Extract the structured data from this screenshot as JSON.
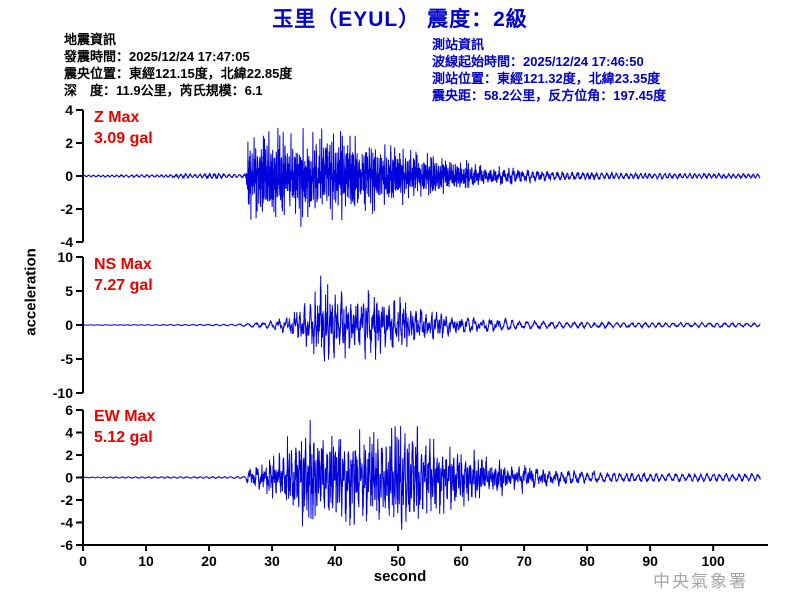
{
  "title": "玉里（EYUL） 震度：2級",
  "quake_info": {
    "heading": "地震資訊",
    "origin_time": "發震時間：2025/12/24 17:47:05",
    "epicenter": "震央位置：東經121.15度，北緯22.85度",
    "depth_mag": "深　度：11.9公里，芮氏規模：6.1"
  },
  "station_info": {
    "heading": "測站資訊",
    "wave_start": "波線起始時間：2025/12/24 17:46:50",
    "location": "測站位置：東經121.32度，北緯23.35度",
    "distance": "震央距：58.2公里，反方位角：197.45度"
  },
  "watermark": "中央氣象署",
  "colors": {
    "title": "#0000cc",
    "station_info": "#0000cc",
    "trace": "#0000dd",
    "trace_label": "#ee0000",
    "axis": "#000000",
    "watermark": "#a6a6a6"
  },
  "chart_data": {
    "type": "line",
    "title": "玉里（EYUL） 震度：2級",
    "xlabel": "second",
    "ylabel": "acceleration",
    "y_unit": "gal",
    "x_range": [
      0,
      108.7
    ],
    "trace_end_s": 107.5,
    "x_ticks": [
      0,
      10,
      20,
      30,
      40,
      50,
      60,
      70,
      80,
      90,
      100
    ],
    "grid": false,
    "traces": [
      {
        "name": "Z",
        "label": "Z Max",
        "max_label": "3.09 gal",
        "max_gal": 3.09,
        "ylim": [
          -4,
          4
        ],
        "yticks": [
          4,
          2,
          0,
          -2,
          -4
        ],
        "onset_s": 26.2,
        "envelope": [
          [
            0,
            0.08
          ],
          [
            5,
            0.1
          ],
          [
            10,
            0.12
          ],
          [
            14,
            0.12
          ],
          [
            16,
            0.22
          ],
          [
            18,
            0.14
          ],
          [
            21,
            0.28
          ],
          [
            23,
            0.16
          ],
          [
            25.8,
            0.18
          ],
          [
            26.2,
            2.5
          ],
          [
            28,
            3.0
          ],
          [
            31,
            2.85
          ],
          [
            34,
            2.6
          ],
          [
            37,
            2.7
          ],
          [
            40,
            2.5
          ],
          [
            44,
            2.3
          ],
          [
            48,
            2.0
          ],
          [
            52,
            1.65
          ],
          [
            56,
            1.35
          ],
          [
            60,
            1.1
          ],
          [
            64,
            0.85
          ],
          [
            68,
            0.7
          ],
          [
            72,
            0.55
          ],
          [
            78,
            0.4
          ],
          [
            85,
            0.3
          ],
          [
            92,
            0.25
          ],
          [
            100,
            0.22
          ],
          [
            107.5,
            0.2
          ]
        ],
        "freqs": [
          7.2,
          3.4
        ],
        "tail_freq": 1.3,
        "noise": 0.6,
        "seed": 7
      },
      {
        "name": "NS",
        "label": "NS Max",
        "max_label": "7.27 gal",
        "max_gal": 7.27,
        "ylim": [
          -10,
          10
        ],
        "yticks": [
          10,
          5,
          0,
          -5,
          -10
        ],
        "onset_s": 26,
        "envelope": [
          [
            0,
            0.03
          ],
          [
            10,
            0.05
          ],
          [
            14,
            0.1
          ],
          [
            20,
            0.12
          ],
          [
            24,
            0.15
          ],
          [
            26,
            0.3
          ],
          [
            28,
            0.5
          ],
          [
            30,
            0.9
          ],
          [
            32,
            1.6
          ],
          [
            34,
            2.6
          ],
          [
            36,
            3.8
          ],
          [
            38,
            7.0
          ],
          [
            40,
            5.5
          ],
          [
            42,
            4.8
          ],
          [
            44,
            4.4
          ],
          [
            46,
            5.2
          ],
          [
            48,
            4.2
          ],
          [
            50,
            3.8
          ],
          [
            53,
            3.0
          ],
          [
            56,
            2.5
          ],
          [
            60,
            1.9
          ],
          [
            64,
            1.5
          ],
          [
            68,
            1.1
          ],
          [
            72,
            0.85
          ],
          [
            78,
            0.65
          ],
          [
            85,
            0.5
          ],
          [
            92,
            0.45
          ],
          [
            100,
            0.42
          ],
          [
            107.5,
            0.38
          ]
        ],
        "freqs": [
          2.4,
          1.2
        ],
        "tail_freq": 0.85,
        "noise": 0.45,
        "seed": 21
      },
      {
        "name": "EW",
        "label": "EW Max",
        "max_label": "5.12 gal",
        "max_gal": 5.12,
        "ylim": [
          -6,
          6
        ],
        "yticks": [
          6,
          4,
          2,
          0,
          -2,
          -4,
          -6
        ],
        "onset_s": 26.2,
        "envelope": [
          [
            0,
            0.05
          ],
          [
            8,
            0.08
          ],
          [
            14,
            0.09
          ],
          [
            20,
            0.1
          ],
          [
            25.8,
            0.12
          ],
          [
            26.2,
            1.1
          ],
          [
            28,
            1.5
          ],
          [
            30,
            1.9
          ],
          [
            32,
            2.6
          ],
          [
            34,
            4.3
          ],
          [
            36,
            5.0
          ],
          [
            38,
            4.4
          ],
          [
            40,
            4.0
          ],
          [
            42,
            4.5
          ],
          [
            44,
            3.9
          ],
          [
            46,
            4.2
          ],
          [
            48,
            4.0
          ],
          [
            50,
            4.6
          ],
          [
            52,
            5.0
          ],
          [
            54,
            3.8
          ],
          [
            56,
            3.2
          ],
          [
            58,
            2.8
          ],
          [
            61,
            2.3
          ],
          [
            64,
            1.9
          ],
          [
            67,
            1.6
          ],
          [
            70,
            1.5
          ],
          [
            74,
            1.1
          ],
          [
            78,
            0.85
          ],
          [
            84,
            0.6
          ],
          [
            90,
            0.55
          ],
          [
            100,
            0.5
          ],
          [
            107.5,
            0.5
          ]
        ],
        "freqs": [
          3.2,
          1.5
        ],
        "tail_freq": 1.0,
        "noise": 0.5,
        "seed": 42
      }
    ]
  }
}
